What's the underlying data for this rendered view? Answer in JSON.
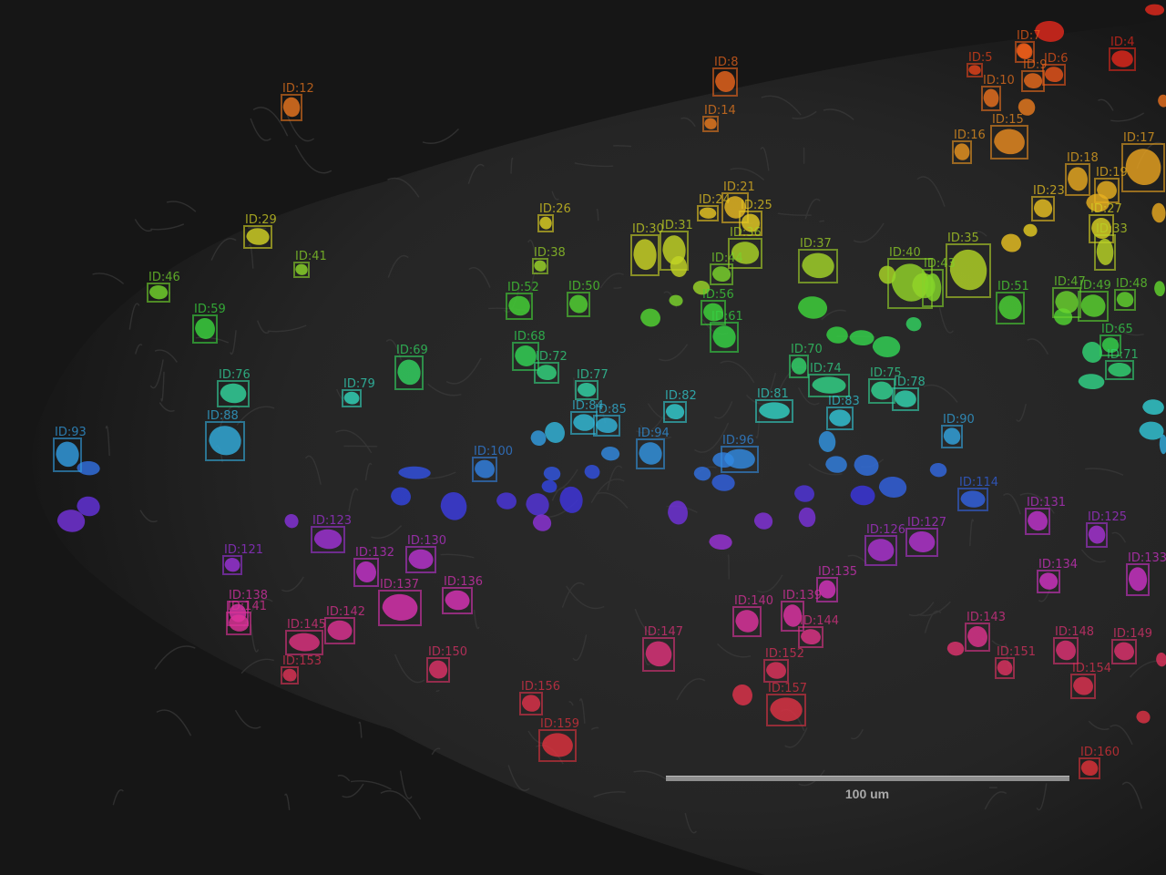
{
  "image": {
    "description_free": true
  },
  "scale_bar": {
    "label": "100 um"
  },
  "colors": {
    "background_dark": "#161616",
    "background_tissue": "#2a2a2a",
    "fiber": "#3a3a3a",
    "scale_bar": "#8e8e8e"
  },
  "cells": [
    {
      "id": "ID:4",
      "color": "#e0281c"
    },
    {
      "id": "ID:5",
      "color": "#e3421a"
    },
    {
      "id": "ID:6",
      "color": "#e6531a"
    },
    {
      "id": "ID:7",
      "color": "#e85c1a"
    },
    {
      "id": "ID:8",
      "color": "#e8641c"
    },
    {
      "id": "ID:9",
      "color": "#e86a1c"
    },
    {
      "id": "ID:10",
      "color": "#e8701e"
    },
    {
      "id": "ID:12",
      "color": "#e6741e"
    },
    {
      "id": "ID:14",
      "color": "#e87a1e"
    },
    {
      "id": "ID:15",
      "color": "#e88a20"
    },
    {
      "id": "ID:16",
      "color": "#e89420"
    },
    {
      "id": "ID:17",
      "color": "#e8a220"
    },
    {
      "id": "ID:18",
      "color": "#e8a820"
    },
    {
      "id": "ID:19",
      "color": "#e8b020"
    },
    {
      "id": "ID:21",
      "color": "#e8b822"
    },
    {
      "id": "ID:23",
      "color": "#e8c022"
    },
    {
      "id": "ID:24",
      "color": "#e6c422"
    },
    {
      "id": "ID:25",
      "color": "#e4ca22"
    },
    {
      "id": "ID:26",
      "color": "#dcce22"
    },
    {
      "id": "ID:27",
      "color": "#d8d022"
    },
    {
      "id": "ID:29",
      "color": "#d2d224"
    },
    {
      "id": "ID:30",
      "color": "#cad424"
    },
    {
      "id": "ID:31",
      "color": "#c2d424"
    },
    {
      "id": "ID:33",
      "color": "#bad426"
    },
    {
      "id": "ID:35",
      "color": "#b2d426"
    },
    {
      "id": "ID:36",
      "color": "#aad426"
    },
    {
      "id": "ID:37",
      "color": "#a2d428"
    },
    {
      "id": "ID:38",
      "color": "#9ad428"
    },
    {
      "id": "ID:40",
      "color": "#92d428"
    },
    {
      "id": "ID:41",
      "color": "#8ad42a"
    },
    {
      "id": "ID:43",
      "color": "#82d42a"
    },
    {
      "id": "ID:44",
      "color": "#7ad42c"
    },
    {
      "id": "ID:46",
      "color": "#72d42c"
    },
    {
      "id": "ID:47",
      "color": "#6ad42e"
    },
    {
      "id": "ID:48",
      "color": "#62d42e"
    },
    {
      "id": "ID:49",
      "color": "#5ad430"
    },
    {
      "id": "ID:50",
      "color": "#52d432"
    },
    {
      "id": "ID:51",
      "color": "#4ad434"
    },
    {
      "id": "ID:52",
      "color": "#44d436"
    },
    {
      "id": "ID:56",
      "color": "#3ed43a"
    },
    {
      "id": "ID:59",
      "color": "#3ad43e"
    },
    {
      "id": "ID:61",
      "color": "#36d444"
    },
    {
      "id": "ID:65",
      "color": "#34d44c"
    },
    {
      "id": "ID:68",
      "color": "#32d456"
    },
    {
      "id": "ID:69",
      "color": "#32d460"
    },
    {
      "id": "ID:70",
      "color": "#32d46a"
    },
    {
      "id": "ID:71",
      "color": "#32d474"
    },
    {
      "id": "ID:72",
      "color": "#32d47e"
    },
    {
      "id": "ID:74",
      "color": "#32d488"
    },
    {
      "id": "ID:75",
      "color": "#32d492"
    },
    {
      "id": "ID:76",
      "color": "#32d49c"
    },
    {
      "id": "ID:77",
      "color": "#32d4a6"
    },
    {
      "id": "ID:78",
      "color": "#32d4b0"
    },
    {
      "id": "ID:79",
      "color": "#32d4ba"
    },
    {
      "id": "ID:81",
      "color": "#32d2c4"
    },
    {
      "id": "ID:82",
      "color": "#32ccd0"
    },
    {
      "id": "ID:83",
      "color": "#32c4d6"
    },
    {
      "id": "ID:84",
      "color": "#32bcd8"
    },
    {
      "id": "ID:85",
      "color": "#32b4da"
    },
    {
      "id": "ID:88",
      "color": "#32acdc"
    },
    {
      "id": "ID:90",
      "color": "#32a4de"
    },
    {
      "id": "ID:93",
      "color": "#329ce0"
    },
    {
      "id": "ID:94",
      "color": "#3294e0"
    },
    {
      "id": "ID:96",
      "color": "#328ae0"
    },
    {
      "id": "ID:100",
      "color": "#3280e0"
    },
    {
      "id": "ID:114",
      "color": "#3262e0"
    },
    {
      "id": "ID:121",
      "color": "#9a32d8"
    },
    {
      "id": "ID:123",
      "color": "#a032d6"
    },
    {
      "id": "ID:125",
      "color": "#a632d4"
    },
    {
      "id": "ID:126",
      "color": "#ac32d2"
    },
    {
      "id": "ID:127",
      "color": "#b232d0"
    },
    {
      "id": "ID:130",
      "color": "#b832ce"
    },
    {
      "id": "ID:131",
      "color": "#be32cc"
    },
    {
      "id": "ID:132",
      "color": "#c432ca"
    },
    {
      "id": "ID:133",
      "color": "#ca32c6"
    },
    {
      "id": "ID:134",
      "color": "#d032c2"
    },
    {
      "id": "ID:135",
      "color": "#d432bc"
    },
    {
      "id": "ID:136",
      "color": "#d832b6"
    },
    {
      "id": "ID:137",
      "color": "#da32b0"
    },
    {
      "id": "ID:138",
      "color": "#dc32aa"
    },
    {
      "id": "ID:139",
      "color": "#de32a4"
    },
    {
      "id": "ID:140",
      "color": "#de329e"
    },
    {
      "id": "ID:141",
      "color": "#de3298"
    },
    {
      "id": "ID:142",
      "color": "#de3292"
    },
    {
      "id": "ID:143",
      "color": "#de328c"
    },
    {
      "id": "ID:144",
      "color": "#de3286"
    },
    {
      "id": "ID:145",
      "color": "#de3280"
    },
    {
      "id": "ID:147",
      "color": "#de327a"
    },
    {
      "id": "ID:148",
      "color": "#de3274"
    },
    {
      "id": "ID:149",
      "color": "#de326e"
    },
    {
      "id": "ID:150",
      "color": "#de3268"
    },
    {
      "id": "ID:151",
      "color": "#de3262"
    },
    {
      "id": "ID:152",
      "color": "#de325c"
    },
    {
      "id": "ID:153",
      "color": "#de3256"
    },
    {
      "id": "ID:154",
      "color": "#de3250"
    },
    {
      "id": "ID:156",
      "color": "#de324a"
    },
    {
      "id": "ID:157",
      "color": "#de3244"
    },
    {
      "id": "ID:159",
      "color": "#de323e"
    },
    {
      "id": "ID:160",
      "color": "#de3238"
    }
  ]
}
